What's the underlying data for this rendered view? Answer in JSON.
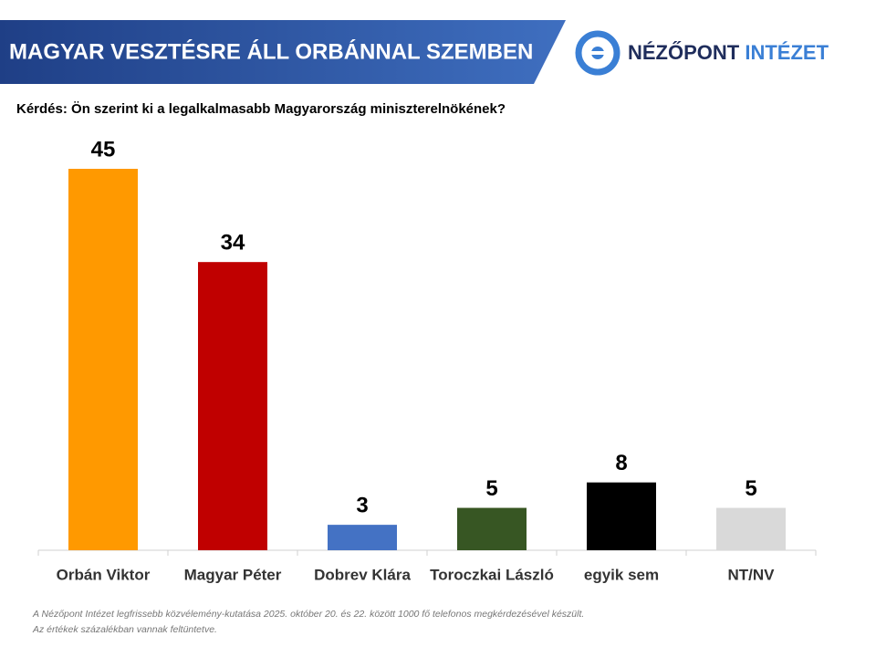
{
  "header": {
    "logo_first": "NÉZŐPONT",
    "logo_second": "INTÉZET"
  },
  "chart_data": {
    "type": "bar",
    "title": "MAGYAR VESZTÉSRE ÁLL ORBÁNNAL SZEMBEN",
    "subtitle": "Kérdés: Ön szerint ki a legalkalmasabb Magyarország miniszterelnökének?",
    "categories": [
      "Orbán Viktor",
      "Magyar Péter",
      "Dobrev Klára",
      "Toroczkai László",
      "egyik sem",
      "NT/NV"
    ],
    "values": [
      45,
      34,
      3,
      5,
      8,
      5
    ],
    "colors": [
      "#FF9900",
      "#C00000",
      "#4472C4",
      "#375623",
      "#000000",
      "#D9D9D9"
    ],
    "notes": [
      "A Nézőpont Intézet legfrissebb közvélemény-kutatása 2025. október 20. és 22. között 1000 fő telefonos megkérdezésével készült.",
      "Az értékek százalékban vannak feltüntetve."
    ]
  }
}
